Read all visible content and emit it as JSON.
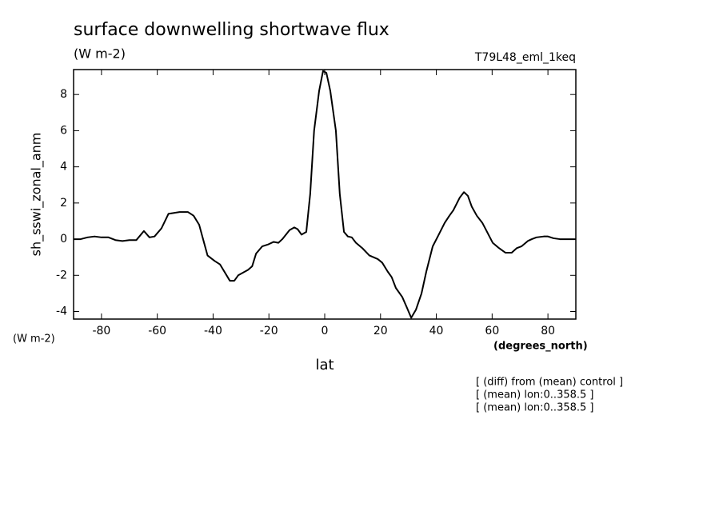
{
  "chart_data": {
    "type": "line",
    "title": "surface downwelling shortwave flux",
    "units": "(W m-2)",
    "run_label": "T79L48_eml_1keq",
    "y_label": "sh_sswi_zonal_anm",
    "y_units": "(W m-2)",
    "x_label": "lat",
    "x_units": "(degrees_north)",
    "notes": [
      "[ (diff) from (mean) control ]",
      "[ (mean) lon:0..358.5 ]",
      "[ (mean) lon:0..358.5 ]"
    ],
    "color": "#000000",
    "x": [
      -90,
      -87.5,
      -85,
      -82.5,
      -80,
      -77.5,
      -75,
      -72.5,
      -70,
      -67.5,
      -64.8,
      -62.8,
      -61,
      -58.5,
      -56,
      -52,
      -49,
      -47,
      -45,
      -42,
      -39.5,
      -37.5,
      -34,
      -32.4,
      -31,
      -27.5,
      -26,
      -24.6,
      -22.4,
      -20.4,
      -18.3,
      -16.6,
      -15.2,
      -12.6,
      -10.9,
      -9.7,
      -8.3,
      -6.6,
      -5.2,
      -3.8,
      -2,
      -0.6,
      0.6,
      2,
      4,
      5.4,
      6.9,
      8.3,
      9.7,
      11.2,
      13.5,
      16,
      19,
      20.6,
      22.6,
      24,
      25.5,
      27.8,
      29.5,
      31,
      32.7,
      34.7,
      36.4,
      38.7,
      40.7,
      43,
      44.7,
      46.1,
      48.4,
      49.9,
      51.3,
      52.7,
      54.5,
      56.5,
      58.2,
      60.2,
      62.5,
      64.8,
      67,
      68.8,
      70.5,
      72.8,
      74.2,
      75.9,
      78.5,
      80,
      82,
      84.3,
      87.7,
      90
    ],
    "values": [
      0,
      0,
      0.1,
      0.15,
      0.1,
      0.1,
      -0.05,
      -0.1,
      -0.05,
      -0.05,
      0.45,
      0.1,
      0.15,
      0.6,
      1.4,
      1.5,
      1.5,
      1.3,
      0.8,
      -0.9,
      -1.2,
      -1.4,
      -2.3,
      -2.3,
      -2.0,
      -1.7,
      -1.5,
      -0.8,
      -0.4,
      -0.3,
      -0.15,
      -0.2,
      0.0,
      0.5,
      0.65,
      0.55,
      0.25,
      0.4,
      2.5,
      6.0,
      8.2,
      9.3,
      9.2,
      8.2,
      6.0,
      2.5,
      0.4,
      0.15,
      0.1,
      -0.2,
      -0.5,
      -0.9,
      -1.1,
      -1.3,
      -1.8,
      -2.1,
      -2.7,
      -3.2,
      -3.8,
      -4.35,
      -3.9,
      -3.0,
      -1.8,
      -0.4,
      0.2,
      0.9,
      1.3,
      1.6,
      2.3,
      2.6,
      2.4,
      1.8,
      1.3,
      0.9,
      0.4,
      -0.2,
      -0.5,
      -0.75,
      -0.75,
      -0.5,
      -0.4,
      -0.1,
      0.0,
      0.1,
      0.15,
      0.15,
      0.05,
      0.0,
      0.0,
      0
    ],
    "xlim": [
      -90,
      90
    ],
    "xticks": [
      -80,
      -60,
      -40,
      -20,
      0,
      20,
      40,
      60,
      80
    ],
    "ylim": [
      -4.42,
      9.38
    ],
    "yticks": [
      -4,
      -2,
      0,
      2,
      4,
      6,
      8
    ]
  }
}
